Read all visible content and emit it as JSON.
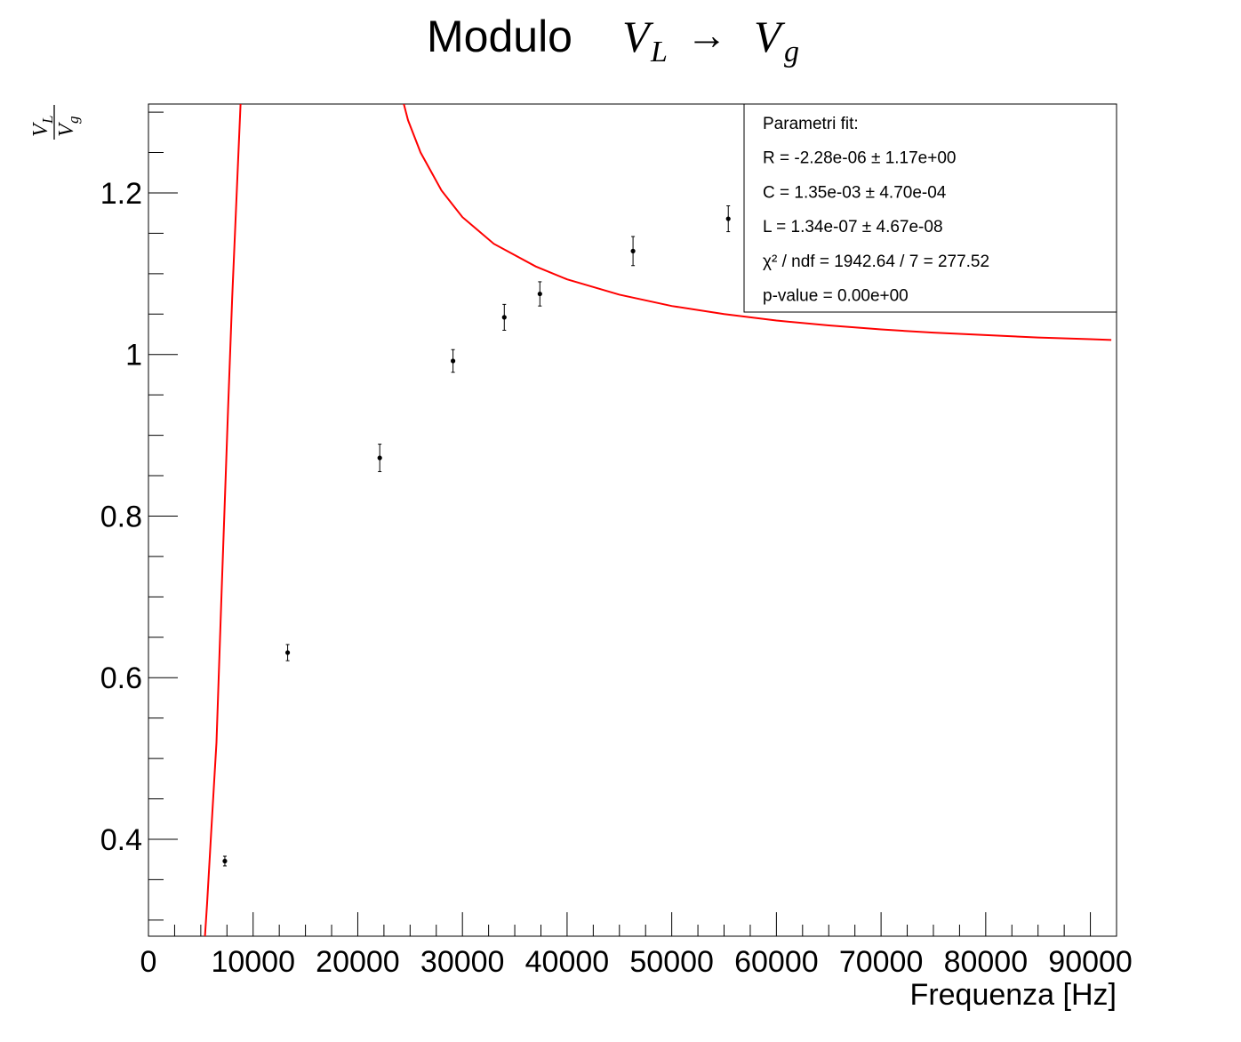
{
  "chart_data": {
    "type": "scatter",
    "title": {
      "prefix": "Modulo",
      "var1": "V",
      "var1_sub": "L",
      "arrow": "→",
      "var2": "V",
      "var2_sub": "g"
    },
    "xlabel": "Frequenza [Hz]",
    "ylabel": {
      "numerator": "V",
      "numerator_sub": "L",
      "denominator": "V",
      "denominator_sub": "g"
    },
    "xlim": [
      0,
      92500
    ],
    "ylim": [
      0.28,
      1.31
    ],
    "x_ticks": [
      0,
      10000,
      20000,
      30000,
      40000,
      50000,
      60000,
      70000,
      80000,
      90000
    ],
    "x_tick_labels": [
      "0",
      "10000",
      "20000",
      "30000",
      "40000",
      "50000",
      "60000",
      "70000",
      "80000",
      "90000"
    ],
    "y_ticks": [
      0.4,
      0.6,
      0.8,
      1.0,
      1.2
    ],
    "y_tick_labels": [
      "0.4",
      "0.6",
      "0.8",
      "1",
      "1.2"
    ],
    "grid": false,
    "series": [
      {
        "type": "scatter",
        "color": "#000000",
        "points": [
          {
            "x": 7300,
            "y": 0.373,
            "yerr": 0.006
          },
          {
            "x": 13300,
            "y": 0.631,
            "yerr": 0.01
          },
          {
            "x": 22100,
            "y": 0.872,
            "yerr": 0.017
          },
          {
            "x": 29100,
            "y": 0.992,
            "yerr": 0.014
          },
          {
            "x": 34000,
            "y": 1.046,
            "yerr": 0.016
          },
          {
            "x": 37400,
            "y": 1.075,
            "yerr": 0.015
          },
          {
            "x": 46300,
            "y": 1.128,
            "yerr": 0.018
          },
          {
            "x": 55400,
            "y": 1.168,
            "yerr": 0.016
          }
        ]
      },
      {
        "type": "line",
        "color": "#ff0000",
        "branches": [
          {
            "points": [
              [
                5400,
                0.28
              ],
              [
                5600,
                0.32
              ],
              [
                6000,
                0.41
              ],
              [
                6500,
                0.52
              ],
              [
                7000,
                0.71
              ],
              [
                7600,
                0.93
              ],
              [
                8000,
                1.07
              ],
              [
                8400,
                1.19
              ],
              [
                8800,
                1.31
              ]
            ]
          },
          {
            "points": [
              [
                24400,
                1.31
              ],
              [
                24800,
                1.29
              ],
              [
                26000,
                1.25
              ],
              [
                28000,
                1.203
              ],
              [
                30000,
                1.17
              ],
              [
                33000,
                1.137
              ],
              [
                37000,
                1.109
              ],
              [
                40000,
                1.093
              ],
              [
                45000,
                1.074
              ],
              [
                50000,
                1.06
              ],
              [
                55000,
                1.05
              ],
              [
                60000,
                1.042
              ],
              [
                65000,
                1.036
              ],
              [
                70000,
                1.031
              ],
              [
                75000,
                1.027
              ],
              [
                80000,
                1.024
              ],
              [
                85000,
                1.021
              ],
              [
                90000,
                1.019
              ],
              [
                92000,
                1.018
              ]
            ]
          }
        ]
      }
    ],
    "legend": {
      "position": "top-right",
      "lines": [
        {
          "text": "Parametri fit:"
        },
        {
          "text": "R = -2.28e-06 ± 1.17e+00"
        },
        {
          "text": "C = 1.35e-03 ± 4.70e-04"
        },
        {
          "text": "L = 1.34e-07 ± 4.67e-08"
        },
        {
          "text": "χ² / ndf = 1942.64 / 7 = 277.52"
        },
        {
          "text": "p-value = 0.00e+00"
        }
      ]
    }
  }
}
